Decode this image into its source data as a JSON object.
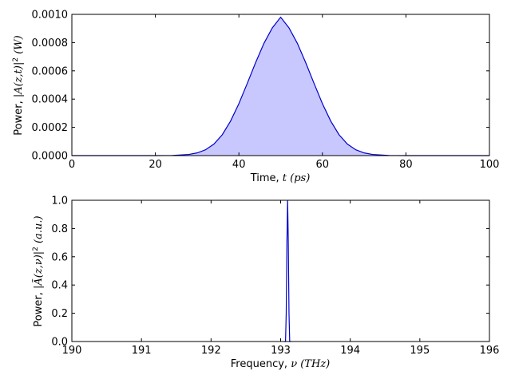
{
  "chart_data": [
    {
      "type": "area",
      "xlabel": "Time, t (ps)",
      "ylabel": "Power, |A(z,t)|² (W)",
      "xlim": [
        0,
        100
      ],
      "ylim": [
        0,
        0.001
      ],
      "xticks": [
        0,
        20,
        40,
        60,
        80,
        100
      ],
      "yticks": [
        0.0,
        0.0002,
        0.0004,
        0.0006,
        0.0008,
        0.001
      ],
      "xtick_labels": [
        "0",
        "20",
        "40",
        "60",
        "80",
        "100"
      ],
      "ytick_labels": [
        "0.0000",
        "0.0002",
        "0.0004",
        "0.0006",
        "0.0008",
        "0.0010"
      ],
      "grid": false,
      "series": [
        {
          "color": "#0000cc",
          "fill_color": "#c8c8ff",
          "x": [
            0,
            10,
            20,
            24,
            28,
            30,
            32,
            34,
            36,
            38,
            40,
            42,
            44,
            46,
            48,
            50,
            52,
            54,
            56,
            58,
            60,
            62,
            64,
            66,
            68,
            70,
            72,
            76,
            80,
            90,
            100
          ],
          "y": [
            0.0,
            0.0,
            0.0,
            1e-06,
            8e-06,
            1.9e-05,
            4.1e-05,
            8.1e-05,
            0.000147,
            0.000244,
            0.000368,
            0.000511,
            0.000658,
            0.000795,
            0.000904,
            0.00098,
            0.000904,
            0.000795,
            0.000658,
            0.000511,
            0.000368,
            0.000244,
            0.000147,
            8.1e-05,
            4.1e-05,
            1.9e-05,
            8e-06,
            1e-06,
            0.0,
            0.0,
            0.0
          ]
        }
      ]
    },
    {
      "type": "line",
      "xlabel": "Frequency, ν (THz)",
      "ylabel": "Power, |Ã(z,ν)|² (a.u.)",
      "xlim": [
        190,
        196
      ],
      "ylim": [
        0,
        1.0
      ],
      "xticks": [
        190,
        191,
        192,
        193,
        194,
        195,
        196
      ],
      "yticks": [
        0.0,
        0.2,
        0.4,
        0.6,
        0.8,
        1.0
      ],
      "xtick_labels": [
        "190",
        "191",
        "192",
        "193",
        "194",
        "195",
        "196"
      ],
      "ytick_labels": [
        "0.0",
        "0.2",
        "0.4",
        "0.6",
        "0.8",
        "1.0"
      ],
      "grid": false,
      "series": [
        {
          "color": "#0000cc",
          "x": [
            193.05,
            193.07,
            193.08,
            193.09,
            193.1,
            193.11,
            193.12,
            193.13,
            193.15
          ],
          "y": [
            0.0,
            0.0,
            0.2,
            0.7,
            1.0,
            0.7,
            0.2,
            0.0,
            0.0
          ]
        }
      ]
    }
  ]
}
